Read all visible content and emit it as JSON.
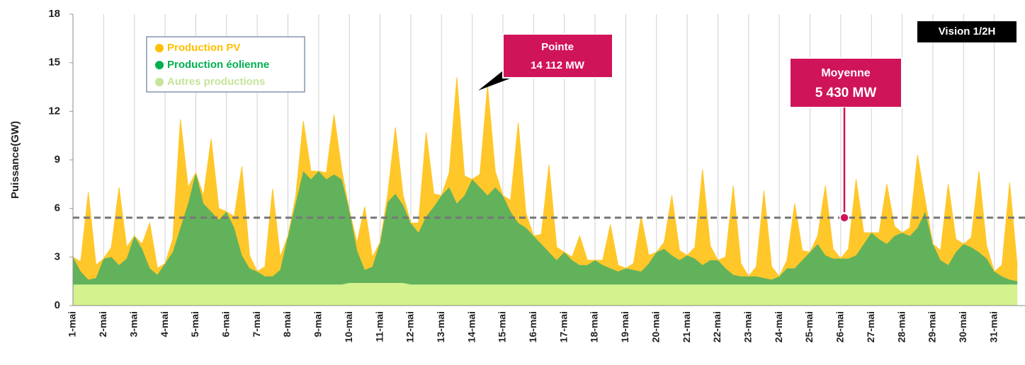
{
  "chart_data": {
    "type": "stacked-area",
    "badge": "Vision 1/2H",
    "y_label": "Puissance(GW)",
    "ylim": [
      0,
      18
    ],
    "yticks": [
      0,
      3,
      6,
      9,
      12,
      15,
      18
    ],
    "grid": "x",
    "legend_position": "upper left",
    "categories": [
      "1-mai",
      null,
      null,
      null,
      "2-mai",
      null,
      null,
      null,
      "3-mai",
      null,
      null,
      null,
      "4-mai",
      null,
      null,
      null,
      "5-mai",
      null,
      null,
      null,
      "6-mai",
      null,
      null,
      null,
      "7-mai",
      null,
      null,
      null,
      "8-mai",
      null,
      null,
      null,
      "9-mai",
      null,
      null,
      null,
      "10-mai",
      null,
      null,
      null,
      "11-mai",
      null,
      null,
      null,
      "12-mai",
      null,
      null,
      null,
      "13-mai",
      null,
      null,
      null,
      "14-mai",
      null,
      null,
      null,
      "15-mai",
      null,
      null,
      null,
      "16-mai",
      null,
      null,
      null,
      "17-mai",
      null,
      null,
      null,
      "18-mai",
      null,
      null,
      null,
      "19-mai",
      null,
      null,
      null,
      "20-mai",
      null,
      null,
      null,
      "21-mai",
      null,
      null,
      null,
      "22-mai",
      null,
      null,
      null,
      "23-mai",
      null,
      null,
      null,
      "24-mai",
      null,
      null,
      null,
      "25-mai",
      null,
      null,
      null,
      "26-mai",
      null,
      null,
      null,
      "27-mai",
      null,
      null,
      null,
      "28-mai",
      null,
      null,
      null,
      "29-mai",
      null,
      null,
      null,
      "30-mai",
      null,
      null,
      null,
      "31-mai",
      null,
      null,
      null
    ],
    "series": [
      {
        "name": "Autres productions",
        "color": "#d4f28e",
        "legend_color": "#c5e59a",
        "values": [
          1.3,
          1.3,
          1.3,
          1.3,
          1.3,
          1.3,
          1.3,
          1.3,
          1.3,
          1.3,
          1.3,
          1.3,
          1.3,
          1.3,
          1.3,
          1.3,
          1.3,
          1.3,
          1.3,
          1.3,
          1.3,
          1.3,
          1.3,
          1.3,
          1.3,
          1.3,
          1.3,
          1.3,
          1.3,
          1.3,
          1.3,
          1.3,
          1.3,
          1.3,
          1.3,
          1.3,
          1.4,
          1.4,
          1.4,
          1.4,
          1.4,
          1.4,
          1.4,
          1.4,
          1.3,
          1.3,
          1.3,
          1.3,
          1.3,
          1.3,
          1.3,
          1.3,
          1.3,
          1.3,
          1.3,
          1.3,
          1.3,
          1.3,
          1.3,
          1.3,
          1.3,
          1.3,
          1.3,
          1.3,
          1.3,
          1.3,
          1.3,
          1.3,
          1.3,
          1.3,
          1.3,
          1.3,
          1.3,
          1.3,
          1.3,
          1.3,
          1.3,
          1.3,
          1.3,
          1.3,
          1.3,
          1.3,
          1.3,
          1.3,
          1.3,
          1.3,
          1.3,
          1.3,
          1.3,
          1.3,
          1.3,
          1.3,
          1.3,
          1.3,
          1.3,
          1.3,
          1.3,
          1.3,
          1.3,
          1.3,
          1.3,
          1.3,
          1.3,
          1.3,
          1.3,
          1.3,
          1.3,
          1.3,
          1.3,
          1.3,
          1.3,
          1.3,
          1.3,
          1.3,
          1.3,
          1.3,
          1.3,
          1.3,
          1.3,
          1.3,
          1.3,
          1.3,
          1.3,
          1.3
        ]
      },
      {
        "name": "Production éolienne",
        "color": "#62b25c",
        "legend_color": "#00b050",
        "values": [
          1.7,
          0.8,
          0.3,
          0.4,
          1.6,
          1.7,
          1.2,
          1.6,
          3.0,
          2.2,
          1.0,
          0.6,
          1.3,
          2.0,
          3.5,
          5.0,
          6.9,
          5.0,
          4.5,
          4.0,
          4.5,
          3.5,
          1.8,
          1.0,
          0.8,
          0.5,
          0.5,
          0.9,
          3.0,
          5.0,
          7.0,
          6.5,
          7.0,
          6.5,
          6.8,
          6.5,
          4.5,
          2.0,
          0.8,
          1.0,
          2.5,
          5.0,
          5.5,
          4.8,
          3.8,
          3.2,
          4.2,
          4.8,
          5.5,
          6.0,
          5.0,
          5.5,
          6.5,
          6.0,
          5.5,
          6.0,
          5.5,
          4.5,
          3.8,
          3.5,
          3.0,
          2.5,
          2.0,
          1.5,
          2.0,
          1.5,
          1.2,
          1.2,
          1.5,
          1.2,
          1.0,
          0.8,
          1.0,
          0.9,
          0.8,
          1.3,
          2.0,
          2.2,
          1.8,
          1.5,
          1.8,
          1.6,
          1.2,
          1.5,
          1.5,
          1.0,
          0.6,
          0.5,
          0.5,
          0.5,
          0.4,
          0.3,
          0.5,
          1.0,
          1.0,
          1.5,
          2.0,
          2.5,
          1.8,
          1.6,
          1.6,
          1.6,
          1.8,
          2.5,
          3.2,
          2.8,
          2.5,
          3.0,
          3.2,
          3.0,
          3.5,
          4.5,
          2.5,
          1.5,
          1.2,
          2.0,
          2.5,
          2.3,
          2.0,
          1.6,
          0.8,
          0.5,
          0.3,
          0.2
        ]
      },
      {
        "name": "Production PV",
        "color": "#ffc729",
        "legend_color": "#ffc000",
        "values": [
          0,
          0.6,
          5.4,
          0.8,
          0,
          0.6,
          4.8,
          0.7,
          0,
          0.3,
          2.8,
          0.4,
          0,
          0.8,
          6.7,
          1.0,
          0,
          0.5,
          4.5,
          0.7,
          0,
          0.7,
          5.5,
          0.8,
          0,
          0.6,
          5.4,
          0.8,
          0,
          0.4,
          3.1,
          0.5,
          0,
          0.4,
          3.7,
          0.6,
          0,
          0.5,
          3.9,
          0.6,
          0,
          0.5,
          4.1,
          0.6,
          0,
          0.6,
          5.2,
          0.8,
          0,
          0.9,
          7.8,
          1.2,
          0,
          0.8,
          6.8,
          1.0,
          0,
          0.7,
          6.2,
          0.9,
          0,
          0.6,
          5.4,
          0.8,
          0,
          0.2,
          1.8,
          0.3,
          0,
          0.3,
          2.7,
          0.4,
          0,
          0.4,
          3.4,
          0.5,
          0,
          0.4,
          3.7,
          0.6,
          0,
          0.7,
          5.9,
          0.9,
          0,
          0.7,
          5.5,
          0.8,
          0,
          0.6,
          5.4,
          0.8,
          0,
          0.5,
          4.0,
          0.6,
          0,
          0.5,
          4.3,
          0.6,
          0,
          0.6,
          4.7,
          0.7,
          0,
          0.4,
          3.7,
          0.6,
          0,
          0.5,
          4.5,
          0.7,
          0,
          0.6,
          5.0,
          0.8,
          0,
          0.6,
          5.0,
          0.8,
          0,
          0.7,
          6.0,
          0.9
        ]
      }
    ],
    "mean_line": 5.43,
    "annotations": [
      {
        "label": "Pointe",
        "value_label": "14 112 MW"
      },
      {
        "label": "Moyenne",
        "value_label": "5 430 MW"
      }
    ]
  }
}
